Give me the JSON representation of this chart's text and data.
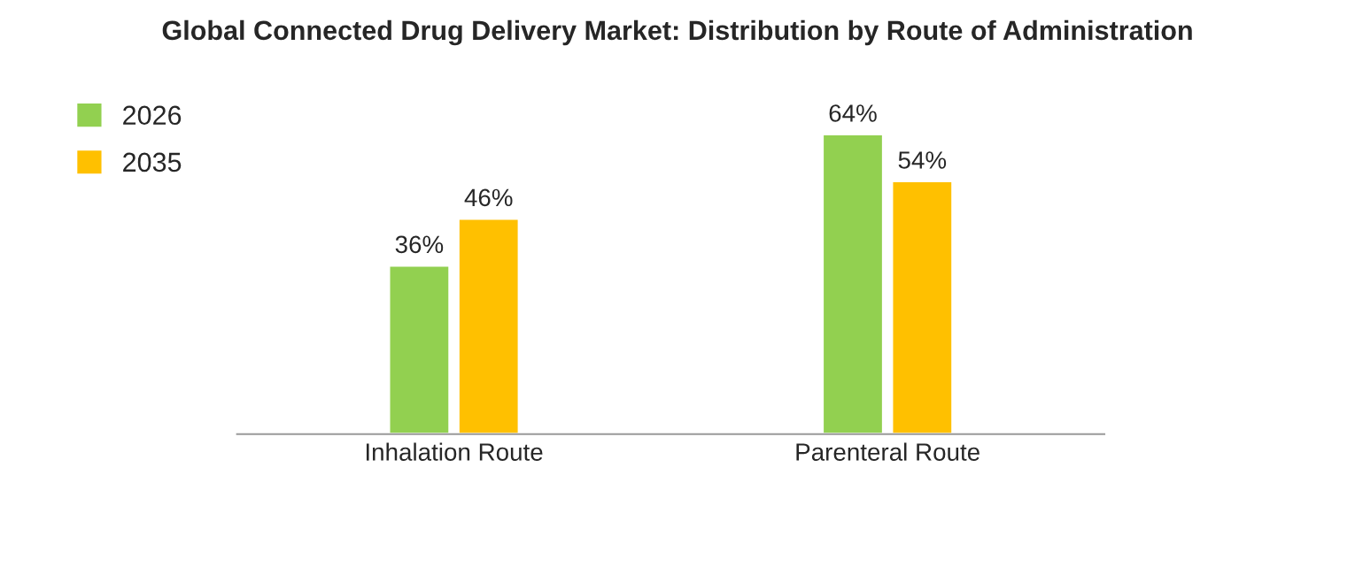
{
  "chart_data": {
    "type": "bar",
    "title": "Global Connected Drug Delivery Market: Distribution by Route of Administration",
    "categories": [
      "Inhalation Route",
      "Parenteral Route"
    ],
    "series": [
      {
        "name": "2026",
        "color": "#92d050",
        "values": [
          36,
          64
        ],
        "value_labels": [
          "36%",
          "64%"
        ]
      },
      {
        "name": "2035",
        "color": "#ffc000",
        "values": [
          46,
          54
        ],
        "value_labels": [
          "46%",
          "54%"
        ]
      }
    ],
    "legend": "top left",
    "grid": false
  }
}
